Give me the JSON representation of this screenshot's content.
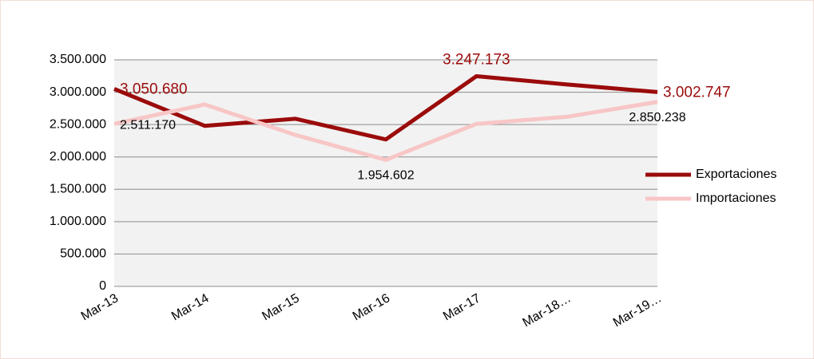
{
  "chart_data": {
    "type": "line",
    "categories": [
      "Mar-13",
      "Mar-14",
      "Mar-15",
      "Mar-16",
      "Mar-17",
      "Mar-18…",
      "Mar-19…"
    ],
    "series": [
      {
        "name": "Exportaciones",
        "color": "#9b0b0b",
        "values": [
          3050680,
          2480000,
          2590000,
          2270000,
          3247173,
          3120000,
          3002747
        ],
        "value_labels": [
          "3.050.680",
          null,
          null,
          null,
          "3.247.173",
          null,
          "3.002.747"
        ]
      },
      {
        "name": "Importaciones",
        "color": "#f8c6c6",
        "values": [
          2511170,
          2810000,
          2340000,
          1954602,
          2510000,
          2620000,
          2850238
        ],
        "value_labels": [
          "2.511.170",
          null,
          null,
          "1.954.602",
          null,
          null,
          "2.850.238"
        ]
      }
    ],
    "ylim": [
      0,
      3500000
    ],
    "yticks": [
      0,
      {
        "value": 500000,
        "label": "500.000"
      },
      {
        "value": 1000000,
        "label": "1.000.000"
      },
      {
        "value": 1500000,
        "label": "1.500.000"
      },
      {
        "value": 2000000,
        "label": "2.000.000"
      },
      {
        "value": 2500000,
        "label": "2.500.000"
      },
      {
        "value": 3000000,
        "label": "3.000.000"
      },
      {
        "value": 3500000,
        "label": "3.500.000"
      }
    ],
    "grid": true,
    "legend": "right"
  }
}
